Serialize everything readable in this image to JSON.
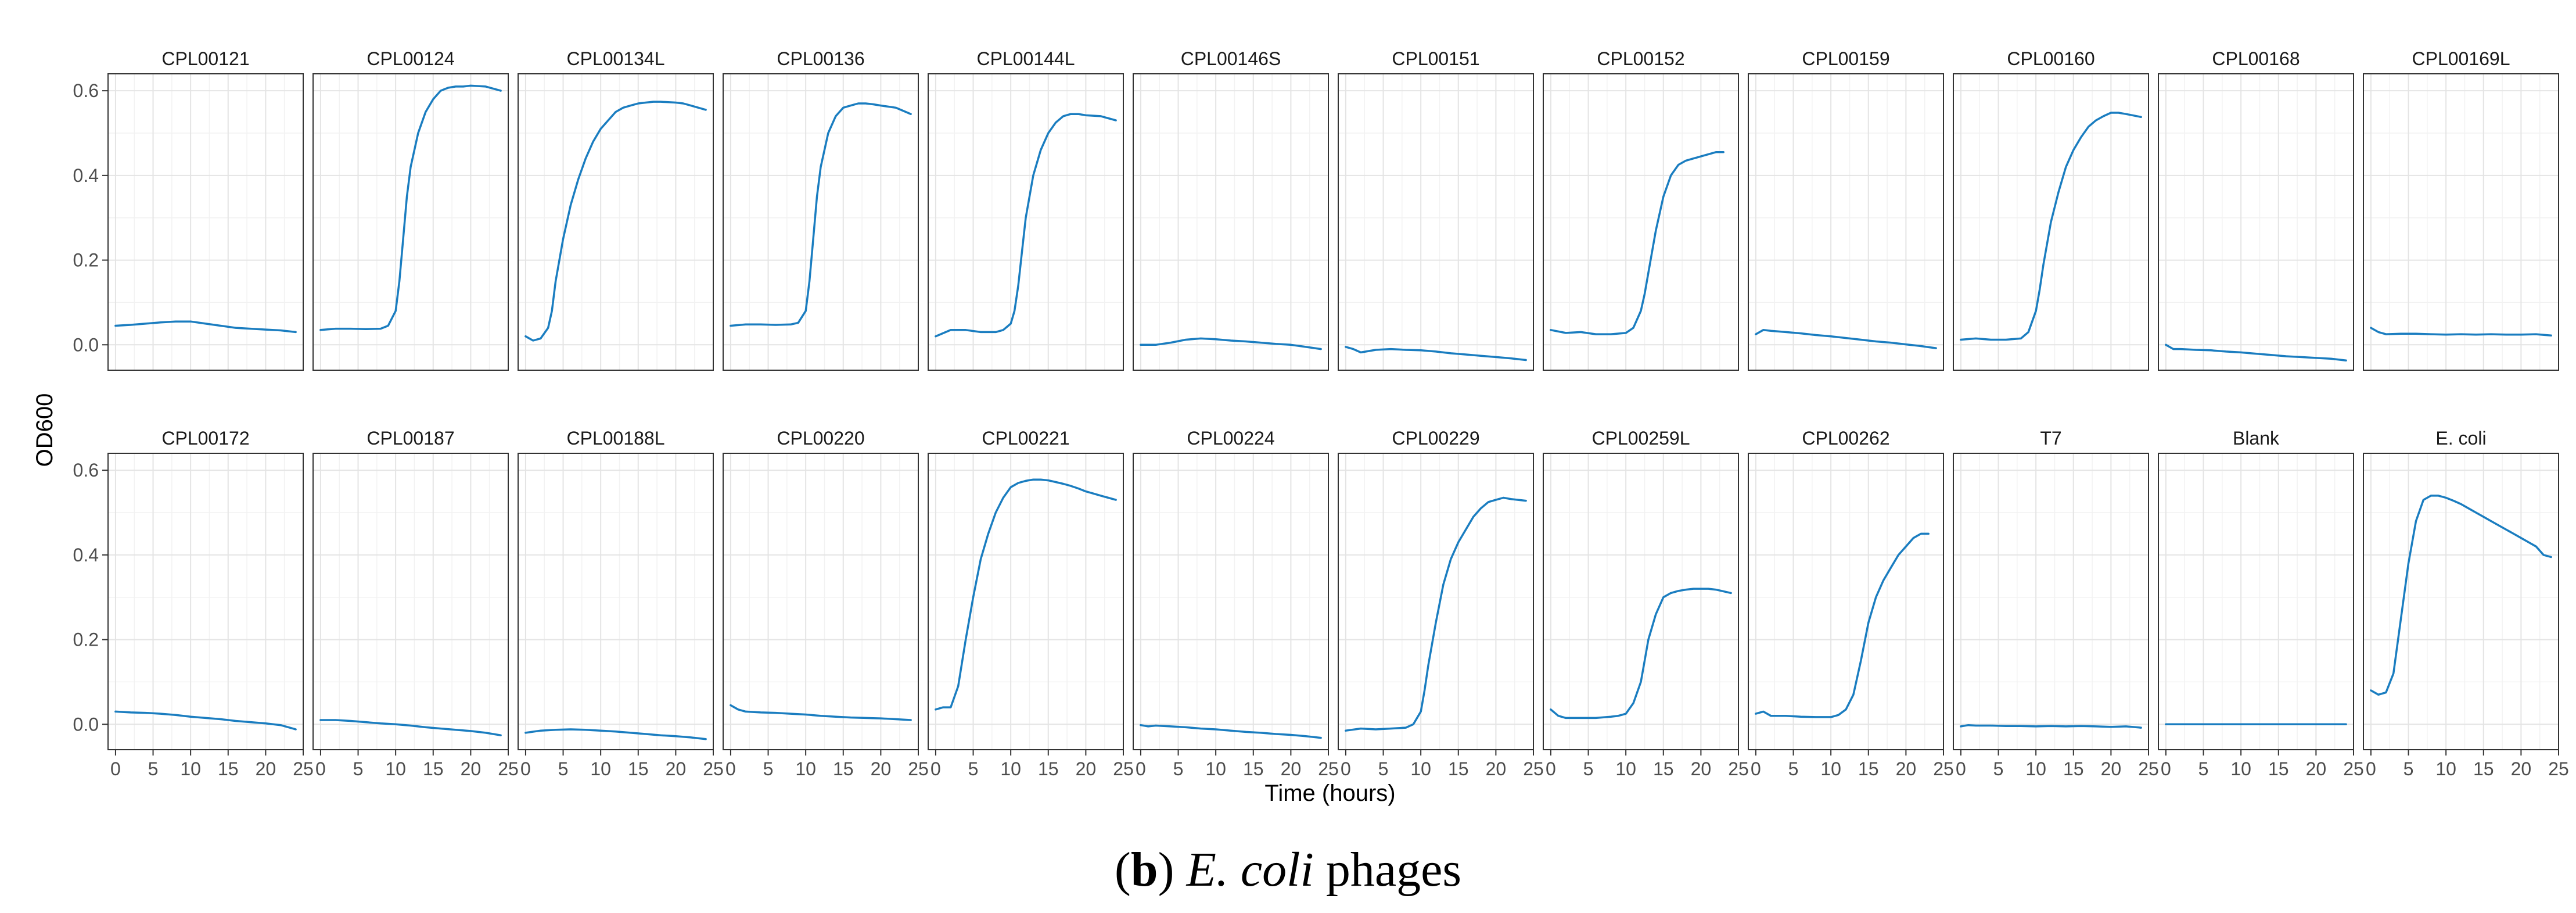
{
  "chart_data": {
    "type": "line",
    "title": "",
    "xlabel": "Time (hours)",
    "ylabel": "OD600",
    "xlim": [
      -1,
      25
    ],
    "ylim": [
      -0.06,
      0.64
    ],
    "x_ticks": [
      0,
      5,
      10,
      15,
      20,
      25
    ],
    "y_ticks": [
      0.0,
      0.2,
      0.4,
      0.6
    ],
    "x_tick_labels": [
      "0",
      "5",
      "10",
      "15",
      "20",
      "25"
    ],
    "y_tick_labels": [
      "0.0",
      "0.2",
      "0.4",
      "0.6"
    ],
    "grid": true,
    "line_color": "#1a7dc0",
    "panels": [
      {
        "name": "CPL00121",
        "x": [
          0,
          2,
          4,
          6,
          8,
          10,
          12,
          14,
          16,
          18,
          20,
          22,
          24
        ],
        "y": [
          0.045,
          0.047,
          0.05,
          0.053,
          0.055,
          0.055,
          0.05,
          0.045,
          0.04,
          0.038,
          0.036,
          0.034,
          0.03
        ]
      },
      {
        "name": "CPL00124",
        "x": [
          0,
          2,
          4,
          6,
          8,
          9,
          10,
          10.5,
          11,
          11.5,
          12,
          13,
          14,
          15,
          16,
          17,
          18,
          19,
          20,
          22,
          24
        ],
        "y": [
          0.035,
          0.038,
          0.038,
          0.037,
          0.038,
          0.045,
          0.08,
          0.15,
          0.25,
          0.35,
          0.42,
          0.5,
          0.55,
          0.58,
          0.6,
          0.607,
          0.61,
          0.61,
          0.612,
          0.61,
          0.6
        ]
      },
      {
        "name": "CPL00134L",
        "x": [
          0,
          1,
          2,
          3,
          3.5,
          4,
          5,
          6,
          7,
          8,
          9,
          10,
          11,
          12,
          13,
          14,
          15,
          16,
          17,
          18,
          19,
          20,
          21,
          22,
          24
        ],
        "y": [
          0.02,
          0.01,
          0.015,
          0.04,
          0.08,
          0.15,
          0.25,
          0.33,
          0.39,
          0.44,
          0.48,
          0.51,
          0.53,
          0.55,
          0.56,
          0.565,
          0.57,
          0.572,
          0.574,
          0.574,
          0.573,
          0.572,
          0.57,
          0.565,
          0.555
        ]
      },
      {
        "name": "CPL00136",
        "x": [
          0,
          2,
          4,
          6,
          8,
          9,
          10,
          10.5,
          11,
          11.5,
          12,
          13,
          14,
          15,
          16,
          17,
          18,
          19,
          20,
          22,
          24
        ],
        "y": [
          0.045,
          0.048,
          0.048,
          0.047,
          0.048,
          0.052,
          0.08,
          0.15,
          0.25,
          0.35,
          0.42,
          0.5,
          0.54,
          0.56,
          0.565,
          0.57,
          0.57,
          0.568,
          0.565,
          0.56,
          0.545
        ]
      },
      {
        "name": "CPL00144L",
        "x": [
          0,
          2,
          4,
          6,
          8,
          9,
          10,
          10.5,
          11,
          11.5,
          12,
          13,
          14,
          15,
          16,
          17,
          18,
          19,
          20,
          22,
          24
        ],
        "y": [
          0.02,
          0.035,
          0.035,
          0.03,
          0.03,
          0.035,
          0.05,
          0.08,
          0.14,
          0.22,
          0.3,
          0.4,
          0.46,
          0.5,
          0.525,
          0.54,
          0.545,
          0.545,
          0.542,
          0.54,
          0.53
        ]
      },
      {
        "name": "CPL00146S",
        "x": [
          0,
          2,
          4,
          6,
          8,
          10,
          12,
          14,
          16,
          18,
          20,
          22,
          24
        ],
        "y": [
          0.0,
          0.0,
          0.005,
          0.012,
          0.015,
          0.013,
          0.01,
          0.008,
          0.005,
          0.002,
          0.0,
          -0.005,
          -0.01
        ]
      },
      {
        "name": "CPL00151",
        "x": [
          0,
          1,
          2,
          4,
          6,
          8,
          10,
          12,
          14,
          16,
          18,
          20,
          22,
          24
        ],
        "y": [
          -0.005,
          -0.01,
          -0.018,
          -0.012,
          -0.01,
          -0.012,
          -0.013,
          -0.016,
          -0.02,
          -0.023,
          -0.026,
          -0.029,
          -0.032,
          -0.036
        ]
      },
      {
        "name": "CPL00152",
        "x": [
          0,
          2,
          4,
          6,
          8,
          10,
          11,
          12,
          12.5,
          13,
          14,
          15,
          16,
          17,
          18,
          19,
          20,
          22,
          23
        ],
        "y": [
          0.035,
          0.028,
          0.03,
          0.025,
          0.025,
          0.028,
          0.04,
          0.08,
          0.12,
          0.17,
          0.27,
          0.35,
          0.4,
          0.425,
          0.435,
          0.44,
          0.445,
          0.455,
          0.455
        ]
      },
      {
        "name": "CPL00159",
        "x": [
          0,
          1,
          2,
          4,
          6,
          8,
          10,
          12,
          14,
          16,
          18,
          20,
          22,
          24
        ],
        "y": [
          0.025,
          0.035,
          0.033,
          0.03,
          0.027,
          0.023,
          0.02,
          0.016,
          0.012,
          0.008,
          0.005,
          0.001,
          -0.003,
          -0.008
        ]
      },
      {
        "name": "CPL00160",
        "x": [
          0,
          2,
          4,
          6,
          8,
          9,
          10,
          10.5,
          11,
          12,
          13,
          14,
          15,
          16,
          17,
          18,
          19,
          20,
          21,
          22,
          24
        ],
        "y": [
          0.012,
          0.015,
          0.012,
          0.012,
          0.015,
          0.03,
          0.08,
          0.13,
          0.19,
          0.29,
          0.36,
          0.42,
          0.46,
          0.49,
          0.515,
          0.53,
          0.54,
          0.548,
          0.548,
          0.545,
          0.538
        ]
      },
      {
        "name": "CPL00168",
        "x": [
          0,
          1,
          2,
          4,
          6,
          8,
          10,
          12,
          14,
          16,
          18,
          20,
          22,
          24
        ],
        "y": [
          0.0,
          -0.01,
          -0.01,
          -0.012,
          -0.013,
          -0.016,
          -0.018,
          -0.021,
          -0.024,
          -0.027,
          -0.029,
          -0.031,
          -0.033,
          -0.037
        ]
      },
      {
        "name": "CPL00169L",
        "x": [
          0,
          1,
          2,
          4,
          6,
          8,
          10,
          12,
          14,
          16,
          18,
          20,
          22,
          24
        ],
        "y": [
          0.04,
          0.03,
          0.025,
          0.026,
          0.026,
          0.025,
          0.024,
          0.025,
          0.024,
          0.025,
          0.024,
          0.024,
          0.025,
          0.022
        ]
      },
      {
        "name": "CPL00172",
        "x": [
          0,
          2,
          4,
          6,
          8,
          10,
          12,
          14,
          16,
          18,
          20,
          22,
          24
        ],
        "y": [
          0.03,
          0.028,
          0.027,
          0.025,
          0.022,
          0.018,
          0.015,
          0.012,
          0.008,
          0.005,
          0.002,
          -0.002,
          -0.012
        ]
      },
      {
        "name": "CPL00187",
        "x": [
          0,
          2,
          4,
          6,
          8,
          10,
          12,
          14,
          16,
          18,
          20,
          22,
          24
        ],
        "y": [
          0.01,
          0.01,
          0.008,
          0.005,
          0.002,
          0.0,
          -0.003,
          -0.007,
          -0.01,
          -0.013,
          -0.016,
          -0.02,
          -0.026
        ]
      },
      {
        "name": "CPL00188L",
        "x": [
          0,
          2,
          4,
          6,
          8,
          10,
          12,
          14,
          16,
          18,
          20,
          22,
          24
        ],
        "y": [
          -0.02,
          -0.015,
          -0.013,
          -0.012,
          -0.013,
          -0.015,
          -0.017,
          -0.02,
          -0.023,
          -0.026,
          -0.028,
          -0.031,
          -0.035
        ]
      },
      {
        "name": "CPL00220",
        "x": [
          0,
          1,
          2,
          4,
          6,
          8,
          10,
          12,
          14,
          16,
          18,
          20,
          22,
          24
        ],
        "y": [
          0.045,
          0.035,
          0.03,
          0.028,
          0.027,
          0.025,
          0.023,
          0.02,
          0.018,
          0.016,
          0.015,
          0.014,
          0.012,
          0.01
        ]
      },
      {
        "name": "CPL00221",
        "x": [
          0,
          1,
          2,
          3,
          4,
          5,
          6,
          7,
          8,
          9,
          10,
          11,
          12,
          13,
          14,
          15,
          16,
          17,
          18,
          19,
          20,
          21,
          22,
          24
        ],
        "y": [
          0.035,
          0.04,
          0.04,
          0.09,
          0.2,
          0.3,
          0.39,
          0.45,
          0.5,
          0.535,
          0.56,
          0.57,
          0.575,
          0.578,
          0.578,
          0.576,
          0.572,
          0.568,
          0.563,
          0.557,
          0.55,
          0.545,
          0.54,
          0.53
        ]
      },
      {
        "name": "CPL00224",
        "x": [
          0,
          1,
          2,
          4,
          6,
          8,
          10,
          12,
          14,
          16,
          18,
          20,
          22,
          24
        ],
        "y": [
          -0.002,
          -0.005,
          -0.003,
          -0.005,
          -0.007,
          -0.01,
          -0.012,
          -0.015,
          -0.018,
          -0.02,
          -0.023,
          -0.025,
          -0.028,
          -0.032
        ]
      },
      {
        "name": "CPL00229",
        "x": [
          0,
          2,
          4,
          6,
          8,
          9,
          10,
          10.5,
          11,
          12,
          13,
          14,
          15,
          16,
          17,
          18,
          19,
          20,
          21,
          22,
          24
        ],
        "y": [
          -0.015,
          -0.01,
          -0.012,
          -0.01,
          -0.008,
          0.0,
          0.03,
          0.08,
          0.14,
          0.24,
          0.33,
          0.39,
          0.43,
          0.46,
          0.49,
          0.51,
          0.525,
          0.53,
          0.535,
          0.532,
          0.528
        ]
      },
      {
        "name": "CPL00259L",
        "x": [
          0,
          1,
          2,
          4,
          6,
          8,
          9,
          10,
          11,
          12,
          12.5,
          13,
          14,
          15,
          16,
          17,
          18,
          19,
          20,
          21,
          22,
          24
        ],
        "y": [
          0.035,
          0.02,
          0.015,
          0.015,
          0.015,
          0.018,
          0.02,
          0.025,
          0.05,
          0.1,
          0.15,
          0.2,
          0.26,
          0.3,
          0.31,
          0.315,
          0.318,
          0.32,
          0.32,
          0.32,
          0.318,
          0.31
        ]
      },
      {
        "name": "CPL00262",
        "x": [
          0,
          1,
          2,
          4,
          6,
          8,
          10,
          11,
          12,
          13,
          14,
          15,
          16,
          17,
          18,
          19,
          20,
          21,
          22,
          23
        ],
        "y": [
          0.025,
          0.03,
          0.02,
          0.02,
          0.018,
          0.017,
          0.017,
          0.022,
          0.035,
          0.07,
          0.15,
          0.24,
          0.3,
          0.34,
          0.37,
          0.4,
          0.42,
          0.44,
          0.45,
          0.45
        ]
      },
      {
        "name": "T7",
        "x": [
          0,
          1,
          2,
          4,
          6,
          8,
          10,
          12,
          14,
          16,
          18,
          20,
          22,
          24
        ],
        "y": [
          -0.005,
          -0.002,
          -0.003,
          -0.003,
          -0.004,
          -0.004,
          -0.005,
          -0.004,
          -0.005,
          -0.004,
          -0.005,
          -0.006,
          -0.005,
          -0.008
        ]
      },
      {
        "name": "Blank",
        "x": [
          0,
          24
        ],
        "y": [
          0.0,
          0.0
        ]
      },
      {
        "name": "E. coli",
        "x": [
          0,
          1,
          2,
          3,
          4,
          5,
          6,
          7,
          8,
          9,
          10,
          11,
          12,
          13,
          14,
          15,
          16,
          17,
          18,
          19,
          20,
          21,
          22,
          23,
          24
        ],
        "y": [
          0.08,
          0.07,
          0.075,
          0.12,
          0.25,
          0.38,
          0.48,
          0.53,
          0.54,
          0.54,
          0.535,
          0.528,
          0.52,
          0.51,
          0.5,
          0.49,
          0.48,
          0.47,
          0.46,
          0.45,
          0.44,
          0.43,
          0.42,
          0.4,
          0.395
        ]
      }
    ]
  },
  "caption": {
    "open_paren": "(",
    "letter": "b",
    "close_paren": ")",
    "species": "E. coli",
    "suffix": " phages"
  }
}
